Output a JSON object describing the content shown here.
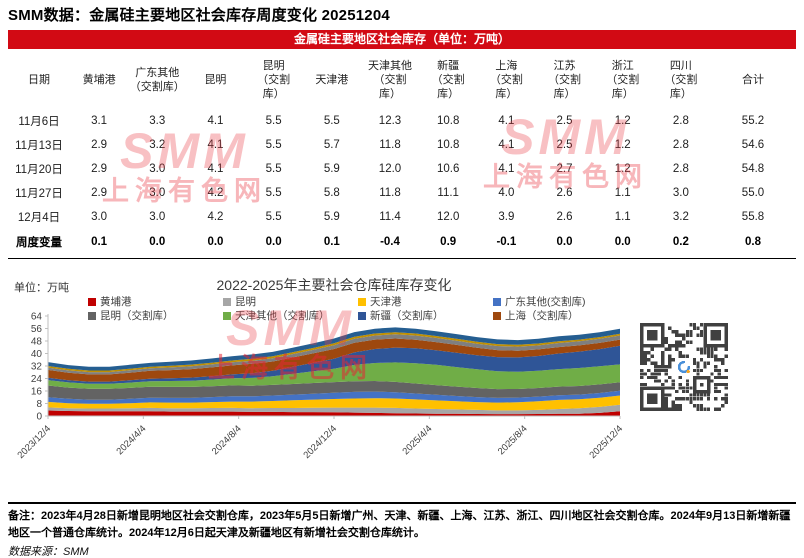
{
  "page_title": "SMM数据：金属硅主要地区社会库存周度变化 20251204",
  "table": {
    "banner": "金属硅主要地区社会库存（单位：万吨）",
    "columns": [
      "日期",
      "黄埔港",
      "广东其他\n（交割库）",
      "昆明",
      "昆明\n（交割\n库）",
      "天津港",
      "天津其他\n（交割\n库）",
      "新疆\n（交割\n库）",
      "上海\n（交割\n库）",
      "江苏\n（交割\n库）",
      "浙江\n（交割\n库）",
      "四川\n（交割\n库）",
      "合计"
    ],
    "rows": [
      [
        "11月6日",
        "3.1",
        "3.3",
        "4.1",
        "5.5",
        "5.5",
        "12.3",
        "10.8",
        "4.1",
        "2.5",
        "1.2",
        "2.8",
        "55.2"
      ],
      [
        "11月13日",
        "2.9",
        "3.2",
        "4.1",
        "5.5",
        "5.7",
        "11.8",
        "10.8",
        "4.1",
        "2.5",
        "1.2",
        "2.8",
        "54.6"
      ],
      [
        "11月20日",
        "2.9",
        "3.0",
        "4.1",
        "5.5",
        "5.9",
        "12.0",
        "10.6",
        "4.1",
        "2.7",
        "1.2",
        "2.8",
        "54.8"
      ],
      [
        "11月27日",
        "2.9",
        "3.0",
        "4.2",
        "5.5",
        "5.8",
        "11.8",
        "11.1",
        "4.0",
        "2.6",
        "1.1",
        "3.0",
        "55.0"
      ],
      [
        "12月4日",
        "3.0",
        "3.0",
        "4.2",
        "5.5",
        "5.9",
        "11.4",
        "12.0",
        "3.9",
        "2.6",
        "1.1",
        "3.2",
        "55.8"
      ]
    ],
    "change_row": [
      "周度变量",
      "0.1",
      "0.0",
      "0.0",
      "0.0",
      "0.1",
      "-0.4",
      "0.9",
      "-0.1",
      "0.0",
      "0.0",
      "0.2",
      "0.8"
    ]
  },
  "chart": {
    "unit": "单位：万吨"
  },
  "chart_data": {
    "type": "area",
    "stacked": true,
    "title": "2022-2025年主要社会仓库硅库存变化",
    "ylabel": "万吨",
    "ylim": [
      0,
      64
    ],
    "yticks": [
      0,
      8,
      16,
      24,
      32,
      40,
      48,
      56,
      64
    ],
    "xticks": [
      "2023/12/4",
      "2024/4/4",
      "2024/8/4",
      "2024/12/4",
      "2025/4/4",
      "2025/8/4",
      "2025/12/4"
    ],
    "grid": false,
    "legend_position": "top",
    "legend": [
      {
        "label": "黄埔港",
        "color": "#C00000"
      },
      {
        "label": "昆明",
        "color": "#A6A6A6"
      },
      {
        "label": "天津港",
        "color": "#FFC000"
      },
      {
        "label": "广东其他(交割库)",
        "color": "#4472C4"
      },
      {
        "label": "昆明（交割库）",
        "color": "#636363"
      },
      {
        "label": "天津其他（交割库）",
        "color": "#70AD47"
      },
      {
        "label": "新疆（交割库）",
        "color": "#2F5597"
      },
      {
        "label": "上海（交割库）",
        "color": "#9E480E"
      }
    ],
    "series": [
      {
        "name": "黄埔港",
        "color": "#C00000",
        "values": [
          3.5,
          3.2,
          3.0,
          3.0,
          3.0,
          3.0,
          2.8,
          2.8,
          2.8,
          2.8,
          2.6,
          2.6,
          2.5,
          2.5,
          2.4,
          2.2,
          2.0,
          1.8,
          1.6,
          1.5,
          1.4,
          1.3,
          1.2,
          1.2,
          1.3,
          1.5,
          1.5,
          2.0,
          3.0
        ]
      },
      {
        "name": "昆明",
        "color": "#A6A6A6",
        "values": [
          2.0,
          1.8,
          1.8,
          1.8,
          2.0,
          2.2,
          2.2,
          2.2,
          2.3,
          2.4,
          2.4,
          2.5,
          2.6,
          2.8,
          3.0,
          3.2,
          3.4,
          3.4,
          3.2,
          3.0,
          2.8,
          2.6,
          2.4,
          2.4,
          2.6,
          3.0,
          3.4,
          3.8,
          4.2
        ]
      },
      {
        "name": "天津港",
        "color": "#FFC000",
        "values": [
          3.5,
          3.2,
          3.0,
          3.0,
          3.2,
          3.5,
          3.6,
          3.6,
          3.8,
          4.0,
          4.2,
          4.5,
          5.0,
          5.2,
          5.5,
          5.8,
          6.0,
          6.0,
          5.8,
          5.5,
          5.2,
          5.0,
          5.0,
          5.2,
          5.5,
          5.8,
          5.8,
          5.9,
          5.9
        ]
      },
      {
        "name": "广东其他(交割库)",
        "color": "#4472C4",
        "values": [
          3.0,
          2.8,
          2.6,
          2.6,
          2.8,
          3.0,
          3.0,
          3.0,
          3.2,
          3.4,
          3.4,
          3.5,
          3.6,
          3.8,
          4.0,
          4.2,
          4.2,
          4.0,
          3.8,
          3.6,
          3.4,
          3.2,
          3.0,
          3.0,
          3.0,
          3.0,
          3.0,
          3.0,
          3.0
        ]
      },
      {
        "name": "昆明（交割库）",
        "color": "#636363",
        "values": [
          7.5,
          7.2,
          7.0,
          7.0,
          7.0,
          7.0,
          7.0,
          7.0,
          7.0,
          7.0,
          6.8,
          6.8,
          6.8,
          6.8,
          6.8,
          6.8,
          6.8,
          6.6,
          6.4,
          6.2,
          6.0,
          5.8,
          5.6,
          5.5,
          5.5,
          5.5,
          5.5,
          5.5,
          5.5
        ]
      },
      {
        "name": "天津其他（交割库）",
        "color": "#70AD47",
        "values": [
          3.5,
          3.3,
          3.2,
          3.2,
          3.4,
          3.6,
          3.8,
          4.0,
          4.2,
          4.5,
          5.0,
          5.5,
          6.5,
          7.5,
          8.5,
          10.5,
          11.5,
          12.5,
          13.0,
          13.0,
          12.5,
          12.0,
          11.5,
          11.0,
          11.0,
          11.2,
          11.5,
          11.6,
          11.4
        ]
      },
      {
        "name": "新疆（交割库）",
        "color": "#2F5597",
        "values": [
          1.5,
          1.4,
          1.4,
          1.4,
          1.5,
          1.6,
          1.8,
          2.0,
          2.2,
          2.5,
          3.0,
          3.5,
          4.5,
          5.5,
          6.5,
          8.0,
          9.0,
          9.5,
          9.5,
          9.3,
          9.2,
          9.0,
          9.0,
          9.2,
          9.5,
          10.0,
          10.5,
          11.0,
          12.0
        ]
      },
      {
        "name": "上海（交割库）",
        "color": "#9E480E",
        "values": [
          5.0,
          4.8,
          4.6,
          4.6,
          4.8,
          5.0,
          5.2,
          5.4,
          5.6,
          5.8,
          6.0,
          6.0,
          6.0,
          6.0,
          6.2,
          6.2,
          6.0,
          5.8,
          5.5,
          5.2,
          5.0,
          4.8,
          4.5,
          4.3,
          4.2,
          4.1,
          4.0,
          4.0,
          3.9
        ]
      },
      {
        "name": "江苏（交割库）",
        "color": "#7F7F7F",
        "values": [
          1.5,
          1.5,
          1.5,
          1.5,
          1.6,
          1.6,
          1.7,
          1.8,
          1.9,
          2.0,
          2.0,
          2.1,
          2.2,
          2.3,
          2.4,
          2.5,
          2.6,
          2.7,
          2.7,
          2.7,
          2.7,
          2.6,
          2.6,
          2.6,
          2.6,
          2.6,
          2.6,
          2.6,
          2.6
        ]
      },
      {
        "name": "浙江（交割库）",
        "color": "#BF8F00",
        "values": [
          1.0,
          1.0,
          1.0,
          1.0,
          1.0,
          1.0,
          1.0,
          1.1,
          1.1,
          1.1,
          1.2,
          1.2,
          1.2,
          1.2,
          1.3,
          1.3,
          1.3,
          1.3,
          1.3,
          1.2,
          1.2,
          1.2,
          1.2,
          1.2,
          1.2,
          1.2,
          1.1,
          1.1,
          1.1
        ]
      },
      {
        "name": "四川（交割库）",
        "color": "#255E91",
        "values": [
          2.5,
          2.4,
          2.4,
          2.4,
          2.5,
          2.5,
          2.6,
          2.6,
          2.7,
          2.8,
          2.8,
          2.8,
          2.9,
          3.0,
          3.0,
          3.0,
          3.1,
          3.1,
          3.1,
          3.0,
          3.0,
          3.0,
          3.0,
          3.0,
          3.0,
          3.1,
          3.1,
          3.1,
          3.2
        ]
      }
    ]
  },
  "watermark": {
    "line1": "SMM",
    "line2": "上海有色网"
  },
  "notes": {
    "remark": "备注：2023年4月28日新增昆明地区社会交割仓库，2023年5月5日新增广州、天津、新疆、上海、江苏、浙江、四川地区社会交割仓库。2024年9月13日新增新疆地区一个普通仓库统计。2024年12月6日起天津及新疆地区有新增社会交割仓库统计。",
    "source": "数据来源：SMM"
  }
}
